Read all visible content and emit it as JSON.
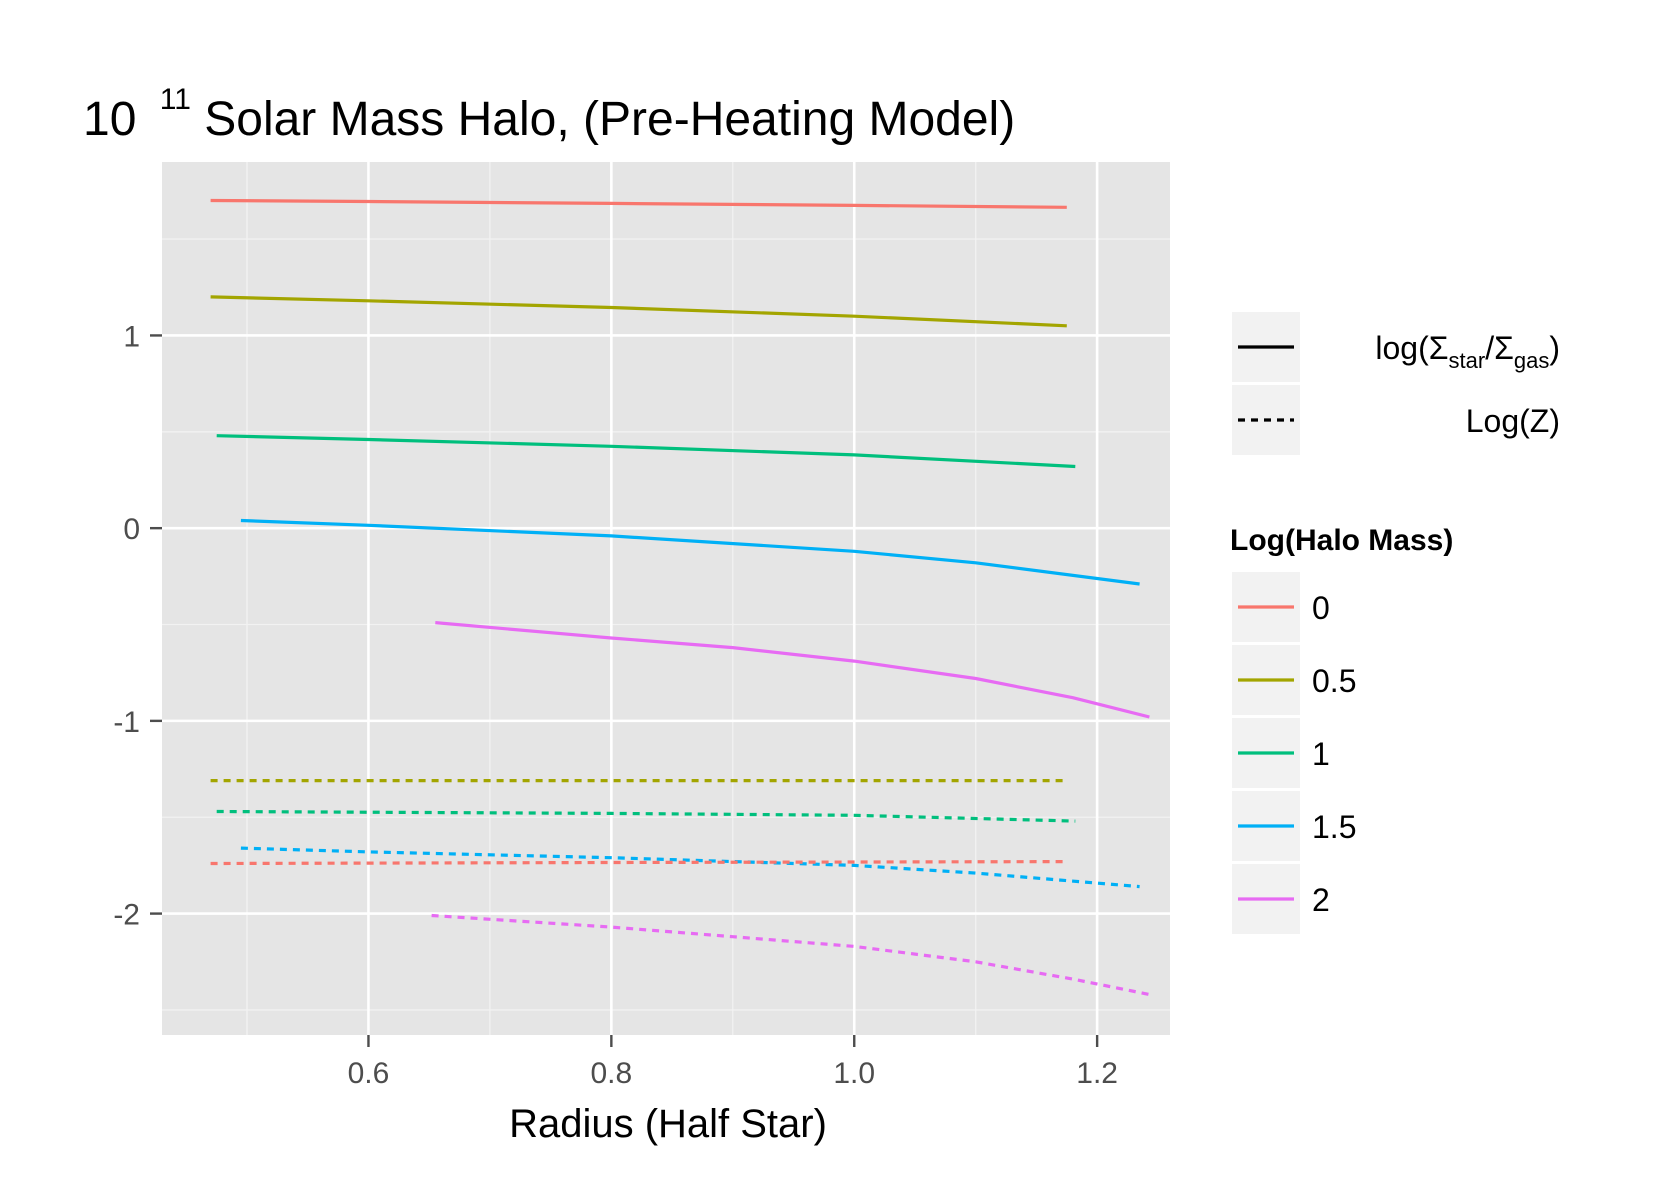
{
  "chart_data": {
    "type": "line",
    "title": {
      "prefix": "10",
      "superscript": "11",
      "rest": " Solar Mass Halo, (Pre-Heating Model)"
    },
    "xlabel": "Radius (Half Star)",
    "ylabel": "",
    "xlim": [
      0.43,
      1.26
    ],
    "ylim": [
      -2.63,
      1.9
    ],
    "x_ticks": [
      0.6,
      0.8,
      1.0,
      1.2
    ],
    "x_tick_labels": [
      "0.6",
      "0.8",
      "1.0",
      "1.2"
    ],
    "y_ticks": [
      -2,
      -1,
      0,
      1
    ],
    "y_tick_labels": [
      "-2",
      "-1",
      "0",
      "1"
    ],
    "grid": true,
    "legend_position": "right",
    "linetype_legend": {
      "entries": [
        {
          "label": "log(Σstar/Σgas)",
          "math": {
            "base": "log(",
            "sym1": "Σ",
            "sub1": "star",
            "mid": "/",
            "sym2": "Σ",
            "sub2": "gas",
            "end": ")"
          },
          "dash": "solid"
        },
        {
          "label": "Log(Z)",
          "dash": "dashed"
        }
      ]
    },
    "color_legend": {
      "title": "Log(Halo Mass)",
      "entries": [
        {
          "label": "0",
          "color": "#F8766D"
        },
        {
          "label": "0.5",
          "color": "#A3A500"
        },
        {
          "label": "1",
          "color": "#00BF7D"
        },
        {
          "label": "1.5",
          "color": "#00B0F6"
        },
        {
          "label": "2",
          "color": "#E76BF3"
        }
      ]
    },
    "series": [
      {
        "group": "0",
        "type": "log(Σstar/Σgas)",
        "color": "#F8766D",
        "dash": "solid",
        "x": [
          0.47,
          0.6,
          0.8,
          1.0,
          1.175
        ],
        "y": [
          1.7,
          1.695,
          1.685,
          1.675,
          1.665
        ]
      },
      {
        "group": "0.5",
        "type": "log(Σstar/Σgas)",
        "color": "#A3A500",
        "dash": "solid",
        "x": [
          0.47,
          0.6,
          0.8,
          1.0,
          1.175
        ],
        "y": [
          1.2,
          1.18,
          1.145,
          1.1,
          1.05
        ]
      },
      {
        "group": "1",
        "type": "log(Σstar/Σgas)",
        "color": "#00BF7D",
        "dash": "solid",
        "x": [
          0.475,
          0.6,
          0.8,
          1.0,
          1.182
        ],
        "y": [
          0.48,
          0.46,
          0.425,
          0.38,
          0.32
        ]
      },
      {
        "group": "1.5",
        "type": "log(Σstar/Σgas)",
        "color": "#00B0F6",
        "dash": "solid",
        "x": [
          0.495,
          0.6,
          0.8,
          1.0,
          1.1,
          1.235
        ],
        "y": [
          0.04,
          0.015,
          -0.04,
          -0.12,
          -0.18,
          -0.29
        ]
      },
      {
        "group": "2",
        "type": "log(Σstar/Σgas)",
        "color": "#E76BF3",
        "dash": "solid",
        "x": [
          0.655,
          0.8,
          0.9,
          1.0,
          1.1,
          1.18,
          1.243
        ],
        "y": [
          -0.49,
          -0.57,
          -0.62,
          -0.69,
          -0.78,
          -0.88,
          -0.98
        ]
      },
      {
        "group": "0.5",
        "type": "Log(Z)",
        "color": "#A3A500",
        "dash": "dashed",
        "x": [
          0.47,
          0.8,
          1.172
        ],
        "y": [
          -1.31,
          -1.31,
          -1.31
        ]
      },
      {
        "group": "1",
        "type": "Log(Z)",
        "color": "#00BF7D",
        "dash": "dashed",
        "x": [
          0.475,
          0.8,
          1.0,
          1.182
        ],
        "y": [
          -1.47,
          -1.48,
          -1.49,
          -1.52
        ]
      },
      {
        "group": "1.5",
        "type": "Log(Z)",
        "color": "#00B0F6",
        "dash": "dashed",
        "x": [
          0.495,
          0.6,
          0.8,
          1.0,
          1.1,
          1.235
        ],
        "y": [
          -1.66,
          -1.68,
          -1.71,
          -1.75,
          -1.79,
          -1.86
        ]
      },
      {
        "group": "0",
        "type": "Log(Z)",
        "color": "#F8766D",
        "dash": "dashed",
        "x": [
          0.47,
          0.8,
          1.172
        ],
        "y": [
          -1.74,
          -1.735,
          -1.73
        ]
      },
      {
        "group": "2",
        "type": "Log(Z)",
        "color": "#E76BF3",
        "dash": "dashed",
        "x": [
          0.652,
          0.8,
          0.9,
          1.0,
          1.1,
          1.18,
          1.243
        ],
        "y": [
          -2.01,
          -2.07,
          -2.12,
          -2.17,
          -2.25,
          -2.34,
          -2.42
        ]
      }
    ]
  }
}
